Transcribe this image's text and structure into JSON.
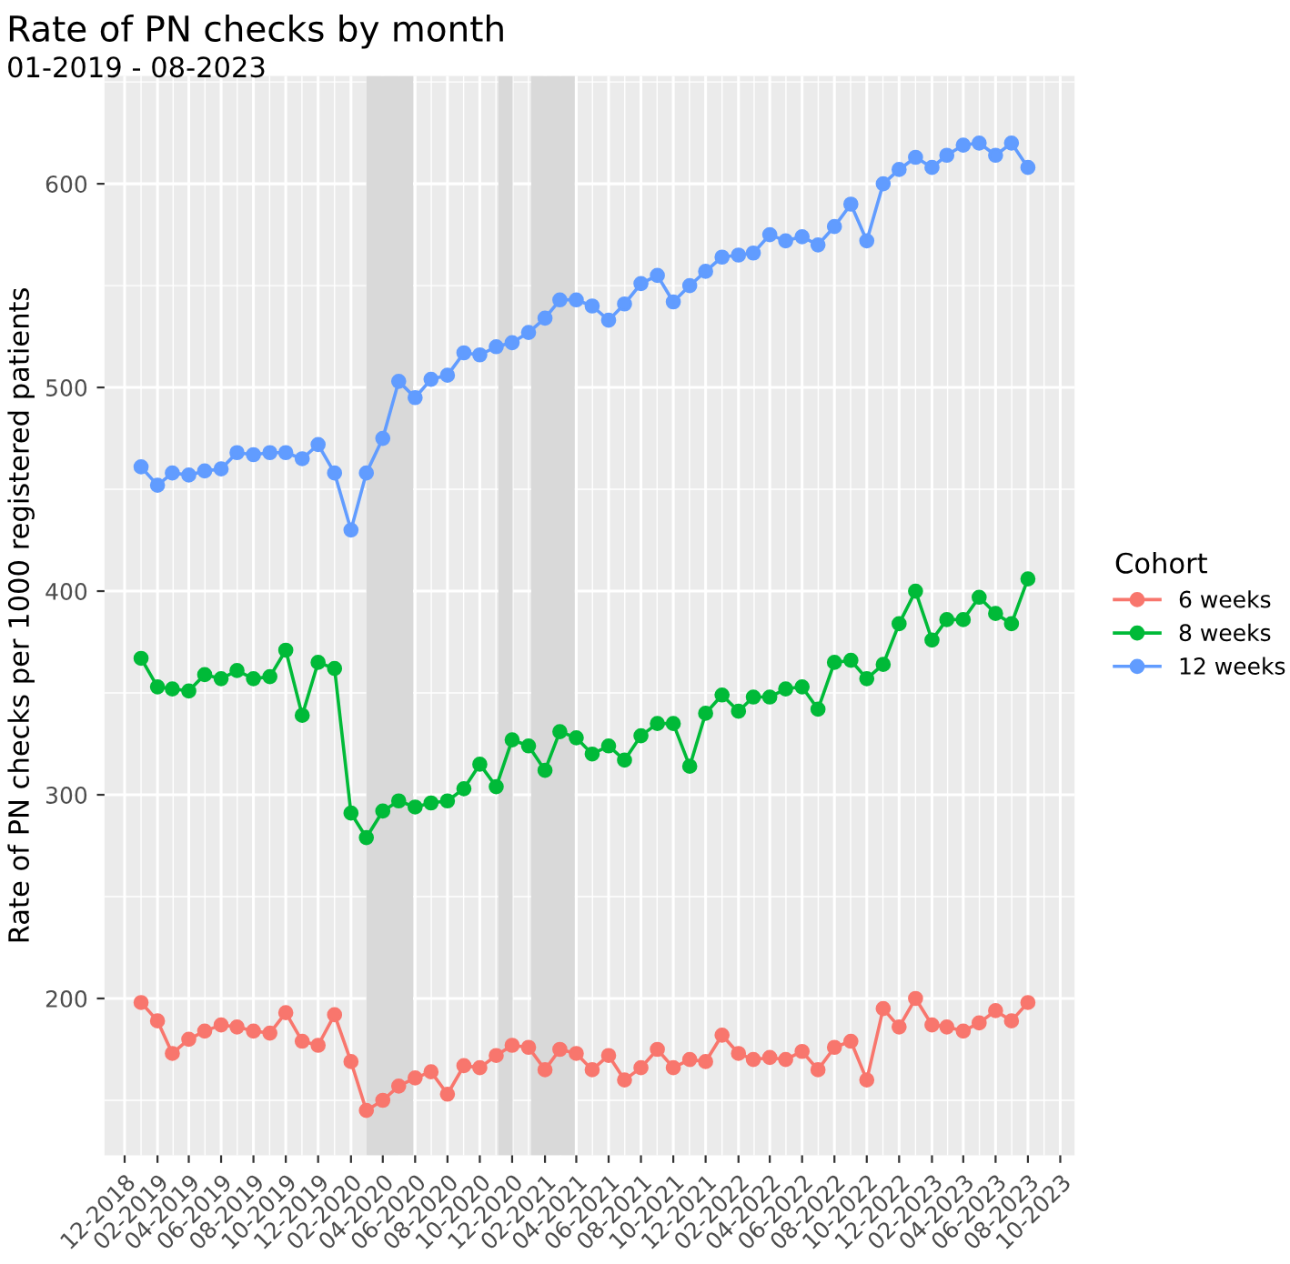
{
  "chart_data": {
    "type": "line",
    "title": "Rate of PN checks by month",
    "subtitle": "01-2019 - 08-2023",
    "ylabel": "Rate of PN checks per 1000 registered patients",
    "legend_title": "Cohort",
    "legend": "right",
    "grid": true,
    "marker": "circle",
    "line_style": "solid",
    "x": [
      "2019-01-01",
      "2019-02-01",
      "2019-03-01",
      "2019-04-01",
      "2019-05-01",
      "2019-06-01",
      "2019-07-01",
      "2019-08-01",
      "2019-09-01",
      "2019-10-01",
      "2019-11-01",
      "2019-12-01",
      "2020-01-01",
      "2020-02-01",
      "2020-03-01",
      "2020-04-01",
      "2020-05-01",
      "2020-06-01",
      "2020-07-01",
      "2020-08-01",
      "2020-09-01",
      "2020-10-01",
      "2020-11-01",
      "2020-12-01",
      "2021-01-01",
      "2021-02-01",
      "2021-03-01",
      "2021-04-01",
      "2021-05-01",
      "2021-06-01",
      "2021-07-01",
      "2021-08-01",
      "2021-09-01",
      "2021-10-01",
      "2021-11-01",
      "2021-12-01",
      "2022-01-01",
      "2022-02-01",
      "2022-03-01",
      "2022-04-01",
      "2022-05-01",
      "2022-06-01",
      "2022-07-01",
      "2022-08-01",
      "2022-09-01",
      "2022-10-01",
      "2022-11-01",
      "2022-12-01",
      "2023-01-01",
      "2023-02-01",
      "2023-03-01",
      "2023-04-01",
      "2023-05-01",
      "2023-06-01",
      "2023-07-01",
      "2023-08-01"
    ],
    "series": [
      {
        "name": "6 weeks",
        "color": "#f8766d",
        "values": [
          198,
          189,
          173,
          180,
          184,
          187,
          186,
          184,
          183,
          193,
          179,
          177,
          192,
          169,
          145,
          150,
          157,
          161,
          164,
          153,
          167,
          166,
          172,
          177,
          176,
          165,
          175,
          173,
          165,
          172,
          160,
          166,
          175,
          166,
          170,
          169,
          182,
          173,
          170,
          171,
          170,
          174,
          165,
          176,
          179,
          160,
          195,
          186,
          200,
          187,
          186,
          184,
          188,
          194,
          189,
          198
        ]
      },
      {
        "name": "8 weeks",
        "color": "#00ba38",
        "values": [
          367,
          353,
          352,
          351,
          359,
          357,
          361,
          357,
          358,
          371,
          339,
          365,
          362,
          291,
          279,
          292,
          297,
          294,
          296,
          297,
          303,
          315,
          304,
          327,
          324,
          312,
          331,
          328,
          320,
          324,
          317,
          329,
          335,
          335,
          314,
          340,
          349,
          341,
          348,
          348,
          352,
          353,
          342,
          365,
          366,
          357,
          364,
          384,
          400,
          376,
          386,
          386,
          397,
          389,
          384,
          406
        ]
      },
      {
        "name": "12 weeks",
        "color": "#619cff",
        "values": [
          461,
          452,
          458,
          457,
          459,
          460,
          468,
          467,
          468,
          468,
          465,
          472,
          458,
          430,
          458,
          475,
          503,
          495,
          504,
          506,
          517,
          516,
          520,
          522,
          527,
          534,
          543,
          543,
          540,
          533,
          541,
          551,
          555,
          542,
          550,
          557,
          564,
          565,
          566,
          575,
          572,
          574,
          570,
          579,
          590,
          572,
          600,
          607,
          613,
          608,
          614,
          619,
          620,
          614,
          620,
          608
        ]
      }
    ],
    "bands": [
      {
        "axis": "x",
        "from": "2020-03-01",
        "to": "2020-05-28",
        "color": "#d9d9d9"
      },
      {
        "axis": "x",
        "from": "2020-11-05",
        "to": "2020-12-02",
        "color": "#d9d9d9"
      },
      {
        "axis": "x",
        "from": "2021-01-06",
        "to": "2021-03-29",
        "color": "#d9d9d9"
      }
    ],
    "ylim": [
      123,
      653
    ],
    "yticks": [
      200,
      300,
      400,
      500,
      600
    ],
    "xlim": [
      "2018-10-24",
      "2023-10-28"
    ],
    "xticks": [
      {
        "value": "2018-12-01",
        "label": "12-2018"
      },
      {
        "value": "2019-02-01",
        "label": "02-2019"
      },
      {
        "value": "2019-04-01",
        "label": "04-2019"
      },
      {
        "value": "2019-06-01",
        "label": "06-2019"
      },
      {
        "value": "2019-08-01",
        "label": "08-2019"
      },
      {
        "value": "2019-10-01",
        "label": "10-2019"
      },
      {
        "value": "2019-12-01",
        "label": "12-2019"
      },
      {
        "value": "2020-02-01",
        "label": "02-2020"
      },
      {
        "value": "2020-04-01",
        "label": "04-2020"
      },
      {
        "value": "2020-06-01",
        "label": "06-2020"
      },
      {
        "value": "2020-08-01",
        "label": "08-2020"
      },
      {
        "value": "2020-10-01",
        "label": "10-2020"
      },
      {
        "value": "2020-12-01",
        "label": "12-2020"
      },
      {
        "value": "2021-02-01",
        "label": "02-2021"
      },
      {
        "value": "2021-04-01",
        "label": "04-2021"
      },
      {
        "value": "2021-06-01",
        "label": "06-2021"
      },
      {
        "value": "2021-08-01",
        "label": "08-2021"
      },
      {
        "value": "2021-10-01",
        "label": "10-2021"
      },
      {
        "value": "2021-12-01",
        "label": "12-2021"
      },
      {
        "value": "2022-02-01",
        "label": "02-2022"
      },
      {
        "value": "2022-04-01",
        "label": "04-2022"
      },
      {
        "value": "2022-06-01",
        "label": "06-2022"
      },
      {
        "value": "2022-08-01",
        "label": "08-2022"
      },
      {
        "value": "2022-10-01",
        "label": "10-2022"
      },
      {
        "value": "2022-12-01",
        "label": "12-2022"
      },
      {
        "value": "2023-02-01",
        "label": "02-2023"
      },
      {
        "value": "2023-04-01",
        "label": "04-2023"
      },
      {
        "value": "2023-06-01",
        "label": "06-2023"
      },
      {
        "value": "2023-08-01",
        "label": "08-2023"
      },
      {
        "value": "2023-10-01",
        "label": "10-2023"
      }
    ]
  }
}
